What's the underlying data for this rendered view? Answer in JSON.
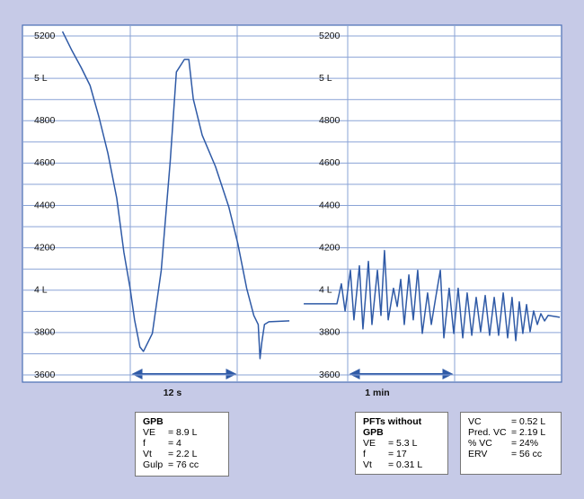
{
  "chart_data": [
    {
      "type": "line",
      "annotation": "12 s",
      "x": [
        4.5,
        5.5,
        6.6,
        7.6,
        8.6,
        9.6,
        10.6,
        11.4,
        12.1,
        12.6,
        13.2,
        13.6,
        14.6,
        15.6,
        16.6,
        17.3,
        18.2,
        18.7,
        19.2,
        20.2,
        21.7,
        23.2,
        24.2,
        25.2,
        26.0,
        26.5,
        26.7,
        26.9,
        27.2,
        27.7,
        30.0
      ],
      "series": [
        {
          "color": "#2f5aa6",
          "values": [
            5221,
            5136,
            5051,
            4966,
            4817,
            4647,
            4434,
            4179,
            4009,
            3860,
            3732,
            3711,
            3796,
            4094,
            4604,
            5030,
            5089,
            5089,
            4902,
            4732,
            4583,
            4392,
            4221,
            4009,
            3881,
            3838,
            3677,
            3753,
            3838,
            3851,
            3855
          ]
        }
      ],
      "xlim": [
        0,
        30.8
      ],
      "ylim": [
        3600,
        5200
      ],
      "yticks": [
        5200,
        {
          "value": 5000,
          "label": "5 L"
        },
        4800,
        4600,
        4400,
        4200,
        {
          "value": 4000,
          "label": "4 L"
        },
        3800,
        3600
      ],
      "grid": true
    },
    {
      "type": "line",
      "annotation": "1 min",
      "x": [
        4.1,
        22.9,
        25.4,
        27.5,
        30.5,
        32.5,
        35.6,
        37.6,
        40.7,
        42.7,
        45.8,
        47.8,
        49.8,
        51.9,
        54.9,
        57.0,
        59.0,
        61.0,
        63.6,
        66.1,
        68.6,
        71.2,
        74.2,
        76.3,
        78.8,
        81.4,
        83.4,
        86.4,
        89.0,
        91.5,
        94.1,
        96.6,
        99.2,
        101.7,
        104.2,
        106.8,
        109.3,
        111.9,
        114.4,
        117.0,
        119.5,
        122.0,
        124.1,
        126.1,
        128.1,
        130.2,
        132.2,
        134.2,
        136.3,
        138.3,
        140.4,
        142.4,
        149.0
      ],
      "series": [
        {
          "color": "#2f5aa6",
          "values": [
            3936,
            3936,
            4030,
            3902,
            4094,
            3860,
            4115,
            3817,
            4136,
            3838,
            4094,
            3881,
            4187,
            3860,
            4009,
            3923,
            4051,
            3838,
            4072,
            3860,
            4094,
            3796,
            3987,
            3838,
            3966,
            4094,
            3775,
            4009,
            3796,
            4009,
            3775,
            3987,
            3787,
            3966,
            3804,
            3975,
            3787,
            3966,
            3787,
            3987,
            3775,
            3966,
            3762,
            3945,
            3796,
            3932,
            3804,
            3902,
            3838,
            3889,
            3855,
            3881,
            3872
          ]
        }
      ],
      "xlim": [
        0,
        150
      ],
      "ylim": [
        3600,
        5200
      ],
      "yticks": [
        5200,
        {
          "value": 5000,
          "label": "5 L"
        },
        4800,
        4600,
        4400,
        4200,
        {
          "value": 4000,
          "label": "4 L"
        },
        3800,
        3600
      ],
      "grid": true
    }
  ],
  "info_boxes": [
    {
      "title": "GPB",
      "rows": [
        [
          "VE",
          "= 8.9 L"
        ],
        [
          "f",
          "= 4"
        ],
        [
          "Vt",
          "= 2.2 L"
        ],
        [
          "Gulp",
          "= 76 cc"
        ]
      ]
    },
    {
      "title": "PFTs without GPB",
      "rows": [
        [
          "VE",
          "= 5.3 L"
        ],
        [
          "f",
          "= 17"
        ],
        [
          "Vt",
          "= 0.31 L"
        ]
      ]
    },
    {
      "rows": [
        [
          "VC",
          "= 0.52 L"
        ],
        [
          "Pred. VC",
          "= 2.19 L"
        ],
        [
          "% VC",
          "= 24%"
        ],
        [
          "ERV",
          "= 56 cc"
        ]
      ]
    }
  ]
}
